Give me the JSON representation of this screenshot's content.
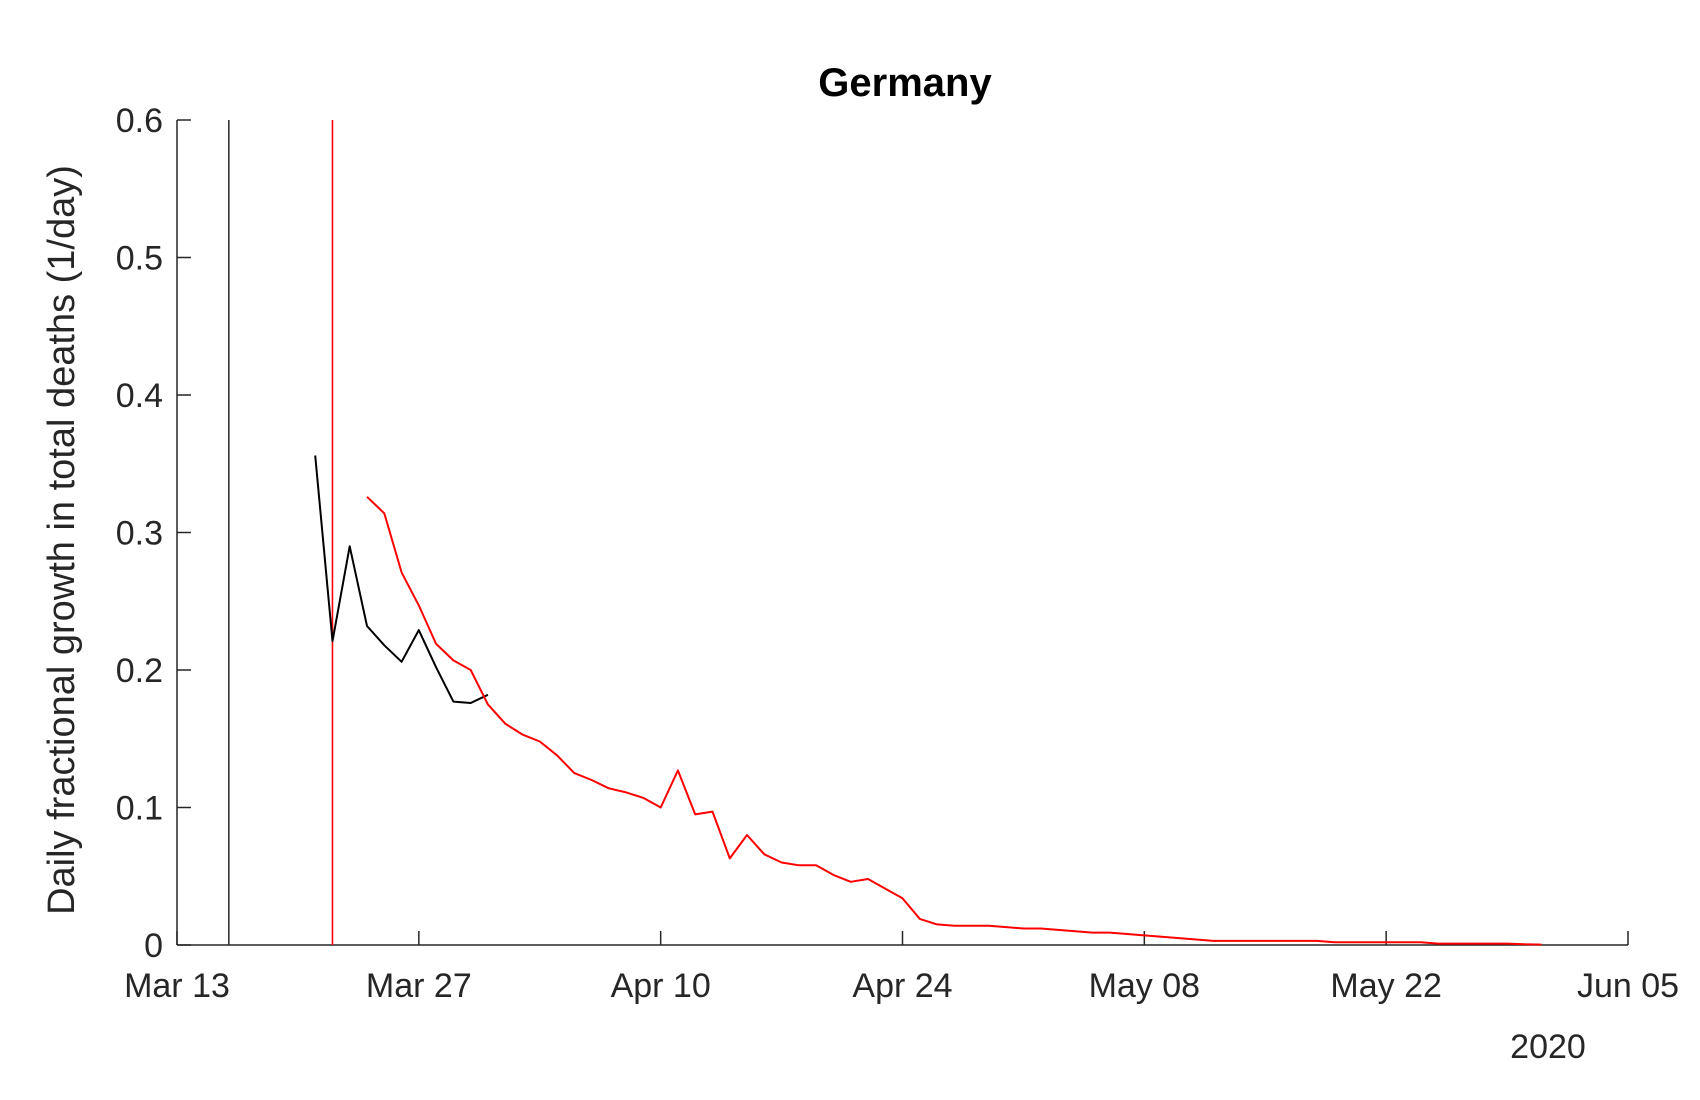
{
  "chart_data": {
    "type": "line",
    "title": "Germany",
    "xlabel": "",
    "ylabel": "Daily fractional growth in total deaths (1/day)",
    "year_label": "2020",
    "xlim": [
      "2020-03-13",
      "2020-06-05"
    ],
    "ylim": [
      0,
      0.6
    ],
    "x_ticks": [
      "2020-03-13",
      "2020-03-27",
      "2020-04-10",
      "2020-04-24",
      "2020-05-08",
      "2020-05-22",
      "2020-06-05"
    ],
    "x_tick_labels": [
      "Mar 13",
      "Mar 27",
      "Apr 10",
      "Apr 24",
      "May 08",
      "May 22",
      "Jun 05"
    ],
    "y_ticks": [
      0,
      0.1,
      0.2,
      0.3,
      0.4,
      0.5,
      0.6
    ],
    "y_tick_labels": [
      "0",
      "0.1",
      "0.2",
      "0.3",
      "0.4",
      "0.5",
      "0.6"
    ],
    "grid": false,
    "vlines": [
      {
        "x": "2020-03-16",
        "color": "#333333"
      },
      {
        "x": "2020-03-22",
        "color": "#ff0000"
      }
    ],
    "series": [
      {
        "color": "#000000",
        "points": [
          [
            "2020-03-21",
            0.356
          ],
          [
            "2020-03-22",
            0.221
          ],
          [
            "2020-03-23",
            0.29
          ],
          [
            "2020-03-24",
            0.232
          ],
          [
            "2020-03-25",
            0.218
          ],
          [
            "2020-03-26",
            0.206
          ],
          [
            "2020-03-27",
            0.229
          ],
          [
            "2020-03-28",
            0.202
          ],
          [
            "2020-03-29",
            0.177
          ],
          [
            "2020-03-30",
            0.176
          ],
          [
            "2020-03-31",
            0.182
          ]
        ]
      },
      {
        "color": "#ff0000",
        "points": [
          [
            "2020-03-24",
            0.326
          ],
          [
            "2020-03-25",
            0.314
          ],
          [
            "2020-03-26",
            0.271
          ],
          [
            "2020-03-27",
            0.247
          ],
          [
            "2020-03-28",
            0.219
          ],
          [
            "2020-03-29",
            0.207
          ],
          [
            "2020-03-30",
            0.2
          ],
          [
            "2020-03-31",
            0.175
          ],
          [
            "2020-04-01",
            0.161
          ],
          [
            "2020-04-02",
            0.153
          ],
          [
            "2020-04-03",
            0.148
          ],
          [
            "2020-04-04",
            0.138
          ],
          [
            "2020-04-05",
            0.125
          ],
          [
            "2020-04-06",
            0.12
          ],
          [
            "2020-04-07",
            0.114
          ],
          [
            "2020-04-08",
            0.111
          ],
          [
            "2020-04-09",
            0.107
          ],
          [
            "2020-04-10",
            0.1
          ],
          [
            "2020-04-11",
            0.127
          ],
          [
            "2020-04-12",
            0.095
          ],
          [
            "2020-04-13",
            0.097
          ],
          [
            "2020-04-14",
            0.063
          ],
          [
            "2020-04-15",
            0.08
          ],
          [
            "2020-04-16",
            0.066
          ],
          [
            "2020-04-17",
            0.06
          ],
          [
            "2020-04-18",
            0.058
          ],
          [
            "2020-04-19",
            0.058
          ],
          [
            "2020-04-20",
            0.051
          ],
          [
            "2020-04-21",
            0.046
          ],
          [
            "2020-04-22",
            0.048
          ],
          [
            "2020-04-23",
            0.041
          ],
          [
            "2020-04-24",
            0.034
          ],
          [
            "2020-04-25",
            0.019
          ],
          [
            "2020-04-26",
            0.015
          ],
          [
            "2020-04-27",
            0.014
          ],
          [
            "2020-04-28",
            0.014
          ],
          [
            "2020-04-29",
            0.014
          ],
          [
            "2020-04-30",
            0.013
          ],
          [
            "2020-05-01",
            0.012
          ],
          [
            "2020-05-02",
            0.012
          ],
          [
            "2020-05-03",
            0.011
          ],
          [
            "2020-05-04",
            0.01
          ],
          [
            "2020-05-05",
            0.009
          ],
          [
            "2020-05-06",
            0.009
          ],
          [
            "2020-05-07",
            0.008
          ],
          [
            "2020-05-08",
            0.007
          ],
          [
            "2020-05-09",
            0.006
          ],
          [
            "2020-05-10",
            0.005
          ],
          [
            "2020-05-11",
            0.004
          ],
          [
            "2020-05-12",
            0.003
          ],
          [
            "2020-05-13",
            0.003
          ],
          [
            "2020-05-14",
            0.003
          ],
          [
            "2020-05-15",
            0.003
          ],
          [
            "2020-05-16",
            0.003
          ],
          [
            "2020-05-17",
            0.003
          ],
          [
            "2020-05-18",
            0.003
          ],
          [
            "2020-05-19",
            0.002
          ],
          [
            "2020-05-20",
            0.002
          ],
          [
            "2020-05-21",
            0.002
          ],
          [
            "2020-05-22",
            0.002
          ],
          [
            "2020-05-23",
            0.002
          ],
          [
            "2020-05-24",
            0.002
          ],
          [
            "2020-05-25",
            0.001
          ],
          [
            "2020-05-26",
            0.001
          ],
          [
            "2020-05-27",
            0.001
          ],
          [
            "2020-05-28",
            0.001
          ],
          [
            "2020-05-29",
            0.001
          ],
          [
            "2020-05-30",
            0.0005
          ],
          [
            "2020-05-31",
            0.0003
          ]
        ]
      }
    ]
  }
}
